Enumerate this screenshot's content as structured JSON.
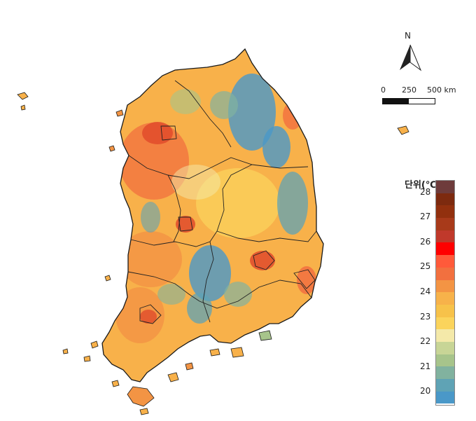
{
  "north_arrow": {
    "label": "N"
  },
  "scale_bar": {
    "labels": [
      "0",
      "250",
      "500 km"
    ]
  },
  "legend": {
    "title": "단위(℃)",
    "ticks": [
      "28",
      "27",
      "26",
      "25",
      "24",
      "23",
      "22",
      "21",
      "20"
    ],
    "colors": [
      "#6e3b3b",
      "#7d2a0f",
      "#92300e",
      "#a83a1a",
      "#c0392b",
      "#ff0000",
      "#ff5a3a",
      "#f2703f",
      "#f39444",
      "#f7b24a",
      "#f7c24a",
      "#fbd45c",
      "#f4e9a9",
      "#c8d596",
      "#a7c48b",
      "#81b29f",
      "#5fa3b5",
      "#4a98c8"
    ]
  },
  "map": {
    "title": "",
    "subject": "South Korea temperature distribution"
  }
}
